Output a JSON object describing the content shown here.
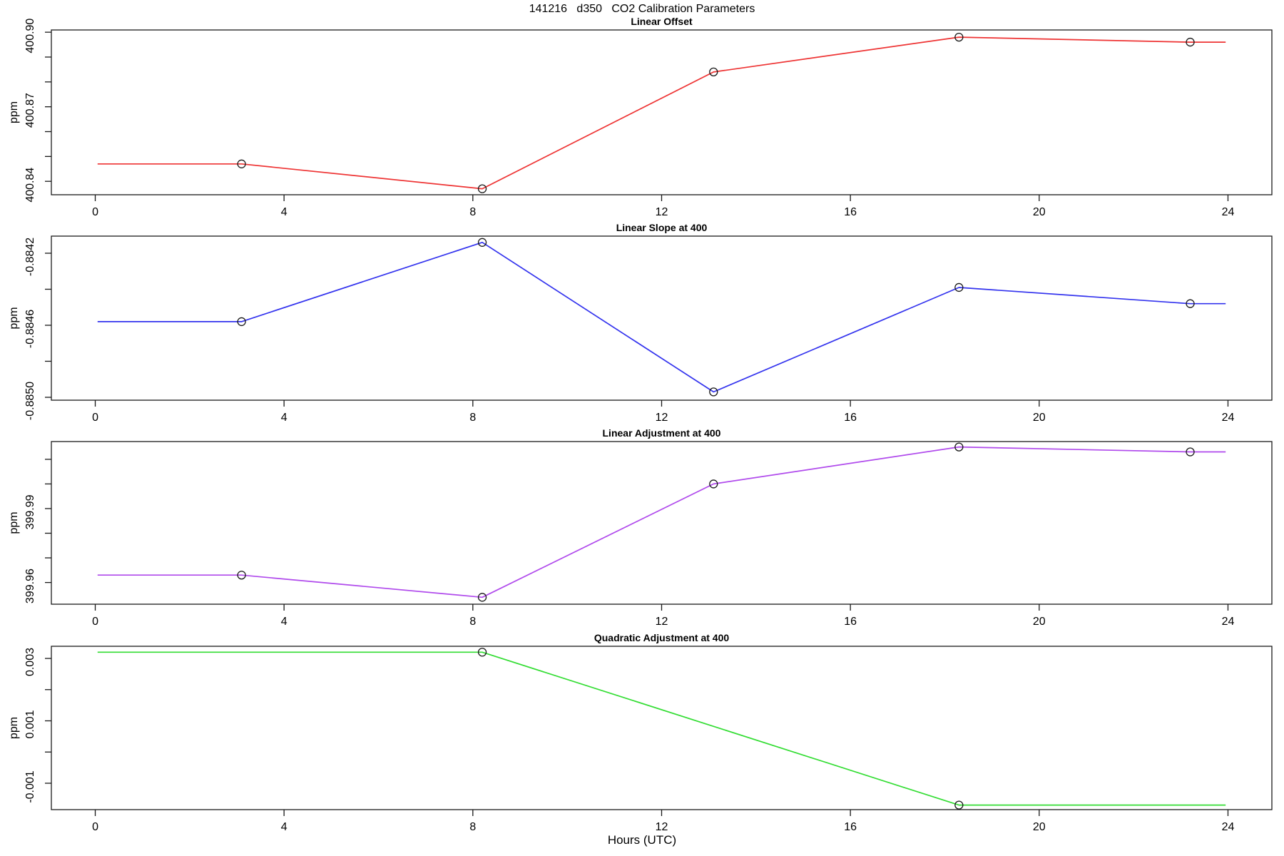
{
  "page": {
    "title": "141216   d350   CO2 Calibration Parameters",
    "xlabel": "Hours (UTC)"
  },
  "chart_data": [
    {
      "type": "line",
      "title": "Linear Offset",
      "ylabel": "ppm",
      "color": "#ee3333",
      "marker_color": "#1a1a1a",
      "x": [
        0.05,
        3.1,
        8.2,
        13.1,
        18.3,
        23.2,
        23.95
      ],
      "y": [
        400.847,
        400.847,
        400.837,
        400.884,
        400.898,
        400.896,
        400.896
      ],
      "markers": [
        false,
        true,
        true,
        true,
        true,
        true,
        false
      ],
      "xlim": [
        -0.93,
        24.93
      ],
      "xticks": [
        0,
        4,
        8,
        12,
        16,
        20,
        24
      ],
      "xtick_labels": [
        "0",
        "4",
        "8",
        "12",
        "16",
        "20",
        "24"
      ],
      "ylim": [
        400.8346,
        400.9009
      ],
      "yticks": [
        400.84,
        400.85,
        400.86,
        400.87,
        400.88,
        400.89,
        400.9
      ],
      "ytick_labels": [
        "400.84",
        "",
        "",
        "400.87",
        "",
        "",
        "400.90"
      ],
      "grid": false,
      "legend": null
    },
    {
      "type": "line",
      "title": "Linear Slope at 400",
      "ylabel": "ppm",
      "color": "#3333ee",
      "marker_color": "#1a1a1a",
      "x": [
        0.05,
        3.1,
        8.2,
        13.1,
        18.3,
        23.2,
        23.95
      ],
      "y": [
        -0.88458,
        -0.88458,
        -0.88414,
        -0.88497,
        -0.88439,
        -0.88448,
        -0.88448
      ],
      "markers": [
        false,
        true,
        true,
        true,
        true,
        true,
        false
      ],
      "xlim": [
        -0.93,
        24.93
      ],
      "xticks": [
        0,
        4,
        8,
        12,
        16,
        20,
        24
      ],
      "xtick_labels": [
        "0",
        "4",
        "8",
        "12",
        "16",
        "20",
        "24"
      ],
      "ylim": [
        -0.885016,
        -0.884105
      ],
      "yticks": [
        -0.885,
        -0.8848,
        -0.8846,
        -0.8844,
        -0.8842
      ],
      "ytick_labels": [
        "-0.8850",
        "",
        "-0.8846",
        "",
        "-0.8842"
      ],
      "grid": false,
      "legend": null
    },
    {
      "type": "line",
      "title": "Linear Adjustment at 400",
      "ylabel": "ppm",
      "color": "#b04aec",
      "marker_color": "#1a1a1a",
      "x": [
        0.05,
        3.1,
        8.2,
        13.1,
        18.3,
        23.2,
        23.95
      ],
      "y": [
        399.963,
        399.963,
        399.954,
        400.0,
        400.015,
        400.013,
        400.013
      ],
      "markers": [
        false,
        true,
        true,
        true,
        true,
        true,
        false
      ],
      "xlim": [
        -0.93,
        24.93
      ],
      "xticks": [
        0,
        4,
        8,
        12,
        16,
        20,
        24
      ],
      "xtick_labels": [
        "0",
        "4",
        "8",
        "12",
        "16",
        "20",
        "24"
      ],
      "ylim": [
        399.9512,
        400.0172
      ],
      "yticks": [
        399.96,
        399.97,
        399.98,
        399.99,
        400.0,
        400.01
      ],
      "ytick_labels": [
        "399.96",
        "",
        "",
        "399.99",
        "",
        ""
      ],
      "grid": false,
      "legend": null
    },
    {
      "type": "line",
      "title": "Quadratic Adjustment at 400",
      "ylabel": "ppm",
      "color": "#33dd33",
      "marker_color": "#1a1a1a",
      "x": [
        0.05,
        8.2,
        18.3,
        23.95
      ],
      "y": [
        0.0032,
        0.0032,
        -0.0017,
        -0.0017
      ],
      "markers": [
        false,
        true,
        true,
        false
      ],
      "xlim": [
        -0.93,
        24.93
      ],
      "xticks": [
        0,
        4,
        8,
        12,
        16,
        20,
        24
      ],
      "xtick_labels": [
        "0",
        "4",
        "8",
        "12",
        "16",
        "20",
        "24"
      ],
      "ylim": [
        -0.001846,
        0.003389
      ],
      "yticks": [
        -0.001,
        0.0,
        0.001,
        0.002,
        0.003
      ],
      "ytick_labels": [
        "-0.001",
        "",
        "0.001",
        "",
        "0.003"
      ],
      "grid": false,
      "legend": null
    }
  ]
}
